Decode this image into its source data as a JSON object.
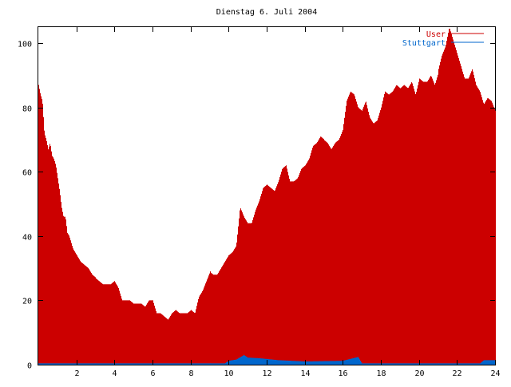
{
  "chart_data": {
    "type": "bar",
    "title": "Dienstag 6. Juli 2004",
    "xlabel": "",
    "ylabel": "",
    "xlim": [
      0,
      24
    ],
    "ylim": [
      0,
      105
    ],
    "x_ticks": [
      "2",
      "4",
      "6",
      "8",
      "10",
      "12",
      "14",
      "16",
      "18",
      "20",
      "22",
      "24"
    ],
    "y_ticks": [
      "0",
      "20",
      "40",
      "60",
      "80",
      "100"
    ],
    "grid": false,
    "legend_position": "top-right",
    "colors": {
      "users": "#cc0000",
      "stuttgart": "#0066cc"
    },
    "series": [
      {
        "name": "User",
        "anchors": [
          [
            0.0,
            87
          ],
          [
            0.1,
            84
          ],
          [
            0.2,
            82
          ],
          [
            0.3,
            72
          ],
          [
            0.4,
            70
          ],
          [
            0.5,
            67
          ],
          [
            0.6,
            69
          ],
          [
            0.7,
            65
          ],
          [
            0.8,
            64
          ],
          [
            0.9,
            62
          ],
          [
            1.0,
            58
          ],
          [
            1.1,
            54
          ],
          [
            1.2,
            49
          ],
          [
            1.3,
            46
          ],
          [
            1.4,
            46
          ],
          [
            1.5,
            41
          ],
          [
            1.6,
            40
          ],
          [
            1.7,
            38
          ],
          [
            1.8,
            36
          ],
          [
            1.9,
            35
          ],
          [
            2.0,
            34
          ],
          [
            2.2,
            32
          ],
          [
            2.4,
            31
          ],
          [
            2.6,
            30
          ],
          [
            2.8,
            28
          ],
          [
            3.0,
            27
          ],
          [
            3.2,
            26
          ],
          [
            3.4,
            25
          ],
          [
            3.6,
            25
          ],
          [
            3.8,
            25
          ],
          [
            4.0,
            26
          ],
          [
            4.2,
            24
          ],
          [
            4.4,
            20
          ],
          [
            4.6,
            20
          ],
          [
            4.8,
            20
          ],
          [
            5.0,
            19
          ],
          [
            5.2,
            19
          ],
          [
            5.4,
            19
          ],
          [
            5.6,
            18
          ],
          [
            5.8,
            20
          ],
          [
            6.0,
            20
          ],
          [
            6.2,
            16
          ],
          [
            6.4,
            16
          ],
          [
            6.6,
            15
          ],
          [
            6.8,
            14
          ],
          [
            7.0,
            16
          ],
          [
            7.2,
            17
          ],
          [
            7.4,
            16
          ],
          [
            7.6,
            16
          ],
          [
            7.8,
            16
          ],
          [
            8.0,
            17
          ],
          [
            8.2,
            16
          ],
          [
            8.4,
            21
          ],
          [
            8.6,
            23
          ],
          [
            8.8,
            26
          ],
          [
            9.0,
            29
          ],
          [
            9.2,
            28
          ],
          [
            9.4,
            28
          ],
          [
            9.6,
            30
          ],
          [
            9.8,
            32
          ],
          [
            10.0,
            34
          ],
          [
            10.2,
            35
          ],
          [
            10.4,
            37
          ],
          [
            10.6,
            49
          ],
          [
            10.8,
            46
          ],
          [
            11.0,
            44
          ],
          [
            11.2,
            44
          ],
          [
            11.4,
            48
          ],
          [
            11.6,
            51
          ],
          [
            11.8,
            55
          ],
          [
            12.0,
            56
          ],
          [
            12.2,
            55
          ],
          [
            12.4,
            54
          ],
          [
            12.6,
            57
          ],
          [
            12.8,
            61
          ],
          [
            13.0,
            62
          ],
          [
            13.2,
            57
          ],
          [
            13.4,
            57
          ],
          [
            13.6,
            58
          ],
          [
            13.8,
            61
          ],
          [
            14.0,
            62
          ],
          [
            14.2,
            64
          ],
          [
            14.4,
            68
          ],
          [
            14.6,
            69
          ],
          [
            14.8,
            71
          ],
          [
            15.0,
            70
          ],
          [
            15.2,
            69
          ],
          [
            15.4,
            67
          ],
          [
            15.6,
            69
          ],
          [
            15.8,
            70
          ],
          [
            16.0,
            73
          ],
          [
            16.2,
            82
          ],
          [
            16.4,
            85
          ],
          [
            16.6,
            84
          ],
          [
            16.8,
            80
          ],
          [
            17.0,
            79
          ],
          [
            17.2,
            82
          ],
          [
            17.4,
            77
          ],
          [
            17.6,
            75
          ],
          [
            17.8,
            76
          ],
          [
            18.0,
            80
          ],
          [
            18.2,
            85
          ],
          [
            18.4,
            84
          ],
          [
            18.6,
            85
          ],
          [
            18.8,
            87
          ],
          [
            19.0,
            86
          ],
          [
            19.2,
            87
          ],
          [
            19.4,
            86
          ],
          [
            19.6,
            88
          ],
          [
            19.8,
            84
          ],
          [
            20.0,
            89
          ],
          [
            20.2,
            88
          ],
          [
            20.4,
            88
          ],
          [
            20.6,
            90
          ],
          [
            20.8,
            87
          ],
          [
            21.0,
            91
          ],
          [
            21.2,
            96
          ],
          [
            21.4,
            99
          ],
          [
            21.6,
            105
          ],
          [
            21.8,
            101
          ],
          [
            22.0,
            97
          ],
          [
            22.2,
            93
          ],
          [
            22.4,
            89
          ],
          [
            22.6,
            89
          ],
          [
            22.8,
            92
          ],
          [
            23.0,
            87
          ],
          [
            23.2,
            85
          ],
          [
            23.4,
            81
          ],
          [
            23.6,
            83
          ],
          [
            23.8,
            82
          ],
          [
            24.0,
            79
          ]
        ]
      },
      {
        "name": "Stuttgart",
        "anchors": [
          [
            0.0,
            0.4
          ],
          [
            9.8,
            0.4
          ],
          [
            10.0,
            1.2
          ],
          [
            10.4,
            1.6
          ],
          [
            10.8,
            3
          ],
          [
            11.0,
            2.2
          ],
          [
            11.6,
            2
          ],
          [
            12.6,
            1.4
          ],
          [
            14.0,
            1
          ],
          [
            16.0,
            1.2
          ],
          [
            16.8,
            2.4
          ],
          [
            17.0,
            0.4
          ],
          [
            23.2,
            0.4
          ],
          [
            23.4,
            1.4
          ],
          [
            24.0,
            1.4
          ]
        ]
      }
    ]
  }
}
